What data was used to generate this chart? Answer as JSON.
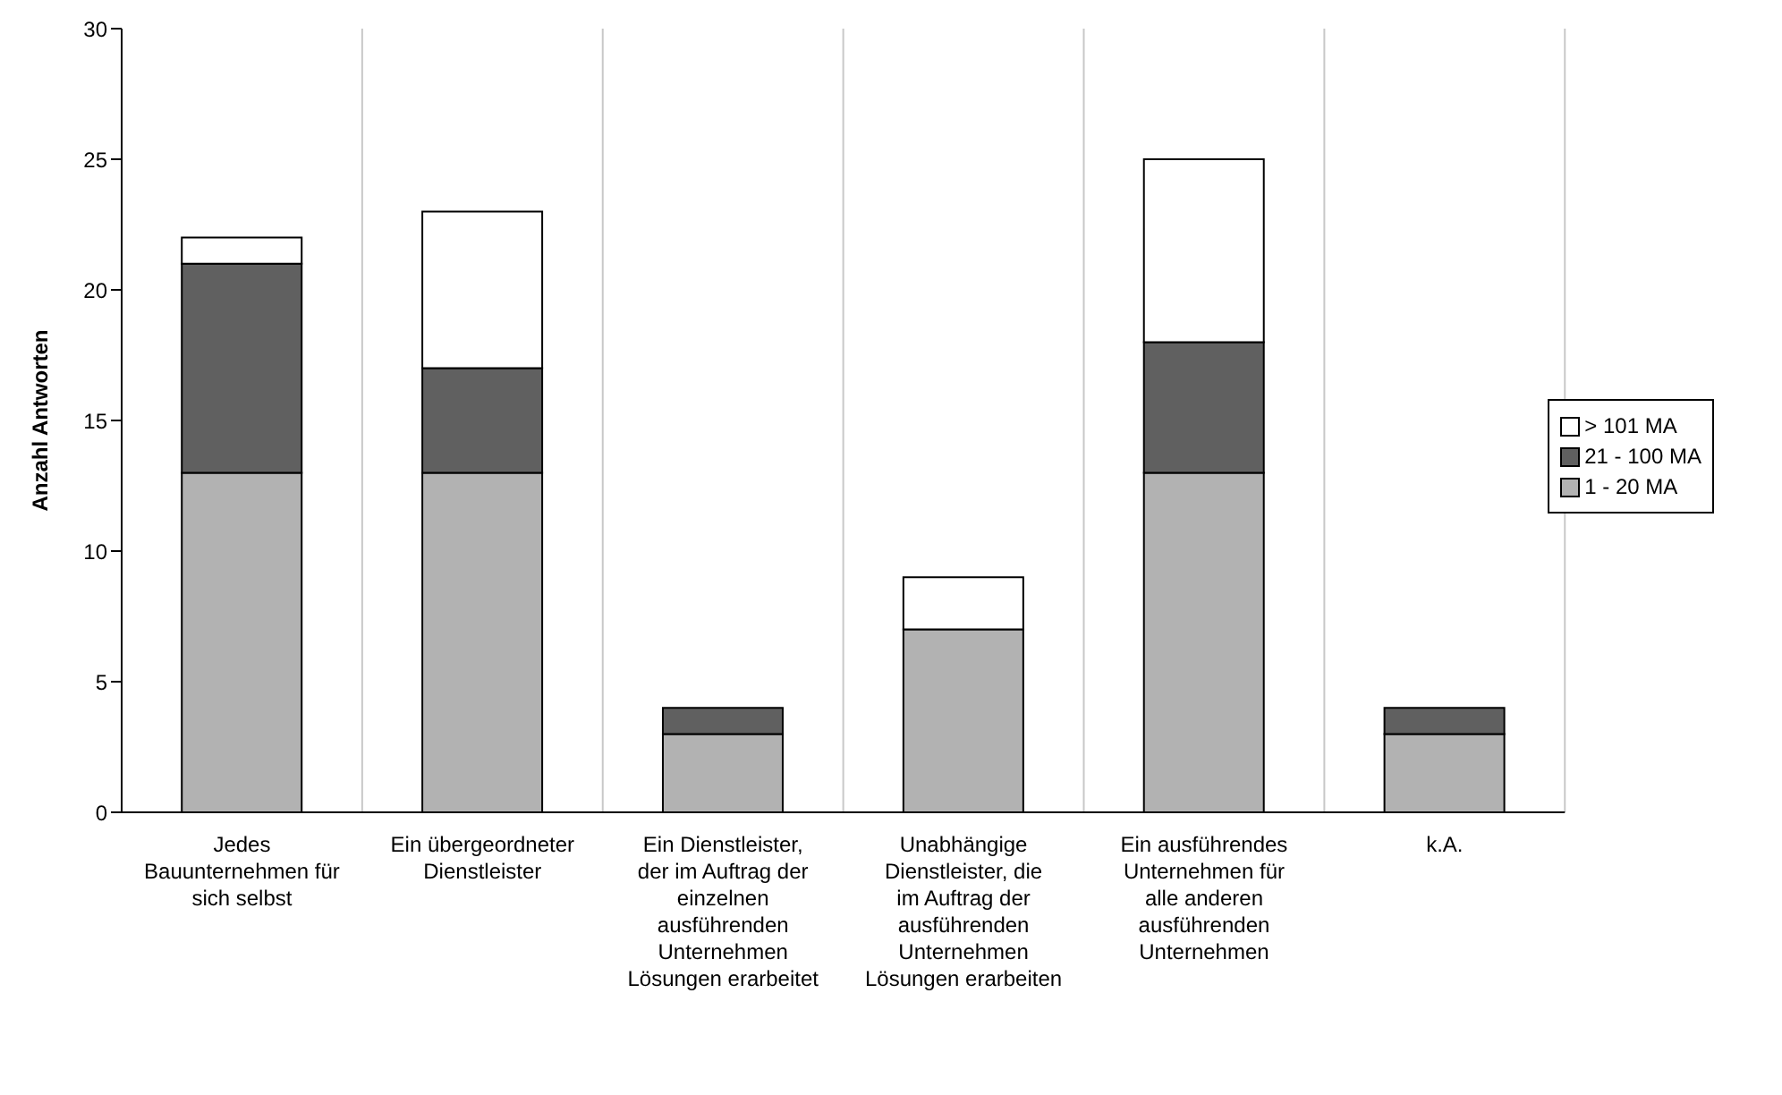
{
  "chart_data": {
    "type": "bar",
    "stacked": true,
    "ylabel": "Anzahl Antworten",
    "categories": [
      "Jedes Bauunternehmen für sich selbst",
      "Ein übergeordneter Dienstleister",
      "Ein Dienstleister, der im Auftrag der einzelnen ausführenden Unternehmen Lösungen erarbeitet",
      "Unabhängige Dienstleister, die im Auftrag der ausführenden Unternehmen Lösungen erarbeiten",
      "Ein ausführendes Unternehmen für alle anderen ausführenden Unternehmen",
      "k.A."
    ],
    "series": [
      {
        "name": "1 - 20 MA",
        "color": "#b2b2b2",
        "values": [
          13,
          13,
          3,
          7,
          13,
          3
        ]
      },
      {
        "name": "21 - 100 MA",
        "color": "#606060",
        "values": [
          8,
          4,
          1,
          0,
          5,
          1
        ]
      },
      {
        "name": "> 101 MA",
        "color": "#ffffff",
        "values": [
          1,
          6,
          0,
          2,
          7,
          0
        ]
      }
    ],
    "ylim": [
      0,
      30
    ],
    "yticks": [
      0,
      5,
      10,
      15,
      20,
      25,
      30
    ],
    "grid": "x",
    "legend": "right"
  }
}
